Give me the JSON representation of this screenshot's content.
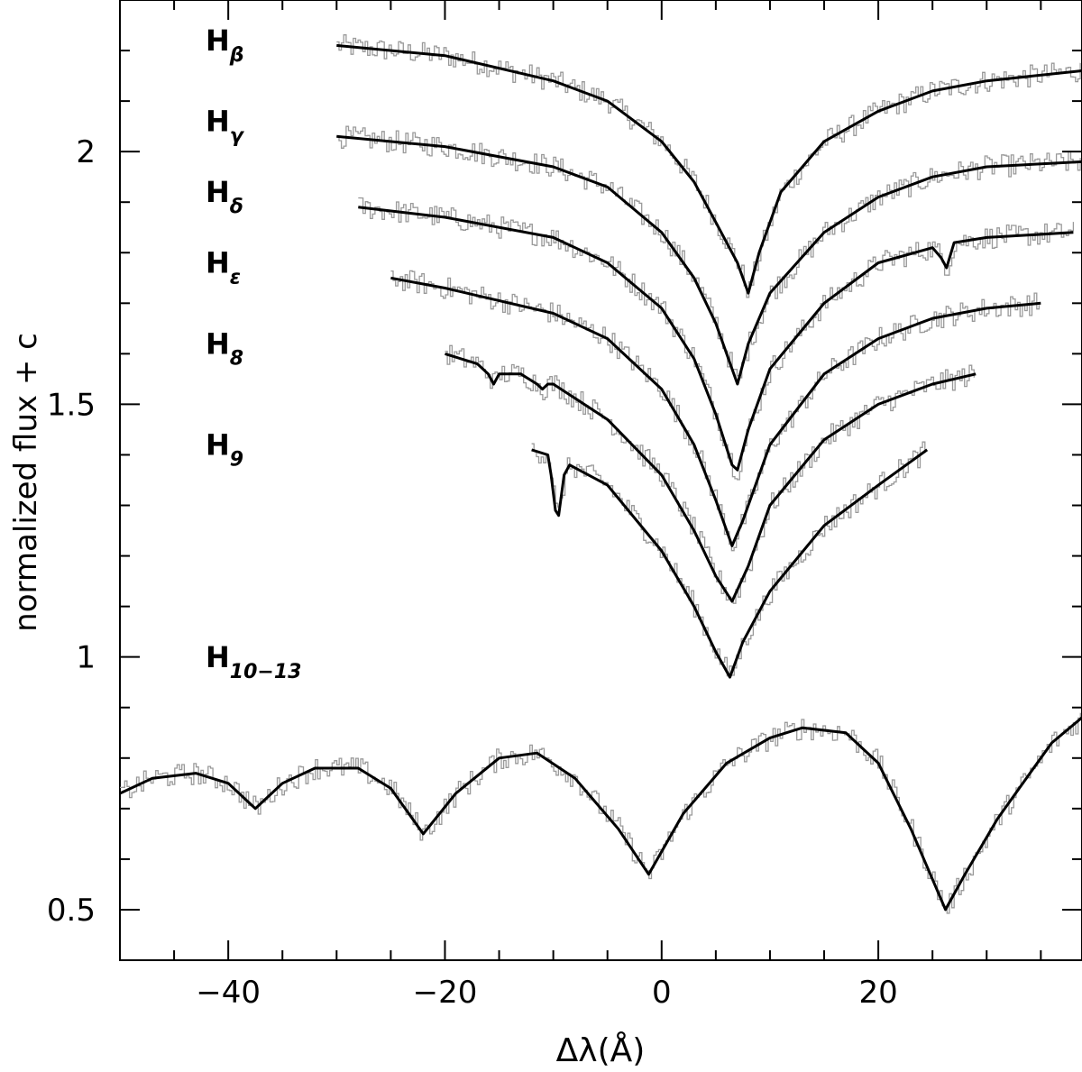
{
  "chart_data": {
    "type": "line",
    "xlabel": "Δλ(Å)",
    "ylabel": "normalized flux + c",
    "xlim": [
      -50,
      38.8
    ],
    "ylim": [
      0.4,
      2.3
    ],
    "x_ticks": [
      -40,
      -20,
      0,
      20
    ],
    "x_tick_labels": [
      "−40",
      "−20",
      "0",
      "20"
    ],
    "y_ticks": [
      0.5,
      1,
      1.5,
      2
    ],
    "y_tick_labels": [
      "0.5",
      "1",
      "1.5",
      "2"
    ],
    "grid": false,
    "line_labels": [
      {
        "base": "H",
        "sub": "β",
        "y": 2.2
      },
      {
        "base": "H",
        "sub": "γ",
        "y": 2.04
      },
      {
        "base": "H",
        "sub": "δ",
        "y": 1.9
      },
      {
        "base": "H",
        "sub": "ε",
        "y": 1.76
      },
      {
        "base": "H",
        "sub": "8",
        "y": 1.6
      },
      {
        "base": "H",
        "sub": "9",
        "y": 1.4
      },
      {
        "base": "H",
        "sub": "10−13",
        "y": 0.98
      }
    ],
    "series": [
      {
        "x": [
          -30,
          -20,
          -10,
          -5,
          0,
          3,
          5,
          7,
          8,
          9,
          11,
          15,
          20,
          25,
          30,
          38.8
        ],
        "y": [
          2.21,
          2.19,
          2.14,
          2.1,
          2.02,
          1.94,
          1.86,
          1.78,
          1.72,
          1.8,
          1.92,
          2.02,
          2.08,
          2.12,
          2.14,
          2.16
        ]
      },
      {
        "x": [
          -30,
          -20,
          -10,
          -5,
          0,
          3,
          5,
          6.5,
          7,
          8,
          10,
          15,
          20,
          25,
          30,
          38.8
        ],
        "y": [
          2.03,
          2.01,
          1.97,
          1.93,
          1.84,
          1.75,
          1.66,
          1.57,
          1.54,
          1.62,
          1.72,
          1.84,
          1.91,
          1.95,
          1.97,
          1.98
        ]
      },
      {
        "x": [
          -28,
          -20,
          -10,
          -5,
          0,
          3,
          5,
          6.5,
          7,
          8,
          10,
          15,
          20,
          25,
          25.8,
          26.3,
          27,
          30,
          38
        ],
        "y": [
          1.89,
          1.87,
          1.83,
          1.78,
          1.69,
          1.59,
          1.48,
          1.38,
          1.37,
          1.45,
          1.57,
          1.7,
          1.78,
          1.81,
          1.79,
          1.77,
          1.82,
          1.83,
          1.84
        ]
      },
      {
        "x": [
          -25,
          -20,
          -10,
          -5,
          0,
          3,
          5,
          6.5,
          7.5,
          10,
          15,
          20,
          25,
          30,
          35
        ],
        "y": [
          1.75,
          1.73,
          1.68,
          1.63,
          1.53,
          1.42,
          1.31,
          1.22,
          1.27,
          1.42,
          1.56,
          1.63,
          1.67,
          1.69,
          1.7
        ]
      },
      {
        "x": [
          -20,
          -17,
          -16,
          -15.5,
          -15,
          -13,
          -11.5,
          -11,
          -10.5,
          -10,
          -5,
          0,
          3,
          5,
          6.5,
          8,
          10,
          15,
          20,
          25,
          29
        ],
        "y": [
          1.6,
          1.58,
          1.56,
          1.54,
          1.56,
          1.56,
          1.54,
          1.53,
          1.54,
          1.54,
          1.47,
          1.36,
          1.25,
          1.16,
          1.11,
          1.18,
          1.3,
          1.43,
          1.5,
          1.54,
          1.56
        ]
      },
      {
        "x": [
          -12,
          -10.5,
          -10.2,
          -9.8,
          -9.5,
          -9,
          -8.5,
          -5,
          0,
          3,
          5,
          6.3,
          7.5,
          10,
          15,
          20,
          24.5
        ],
        "y": [
          1.41,
          1.4,
          1.36,
          1.29,
          1.28,
          1.36,
          1.38,
          1.34,
          1.21,
          1.1,
          1.01,
          0.96,
          1.03,
          1.13,
          1.26,
          1.34,
          1.41
        ]
      },
      {
        "x": [
          -50,
          -47,
          -43,
          -40,
          -37.5,
          -35,
          -32,
          -28,
          -25,
          -22,
          -19,
          -15,
          -11.5,
          -8,
          -4,
          -1.2,
          2,
          6,
          10,
          13,
          17,
          20,
          23,
          25,
          26.2,
          28,
          31,
          34,
          36,
          38.8
        ],
        "y": [
          0.73,
          0.76,
          0.77,
          0.75,
          0.7,
          0.75,
          0.78,
          0.78,
          0.74,
          0.65,
          0.73,
          0.8,
          0.81,
          0.76,
          0.66,
          0.57,
          0.69,
          0.79,
          0.84,
          0.86,
          0.85,
          0.79,
          0.66,
          0.56,
          0.5,
          0.57,
          0.68,
          0.77,
          0.83,
          0.88
        ]
      }
    ]
  }
}
